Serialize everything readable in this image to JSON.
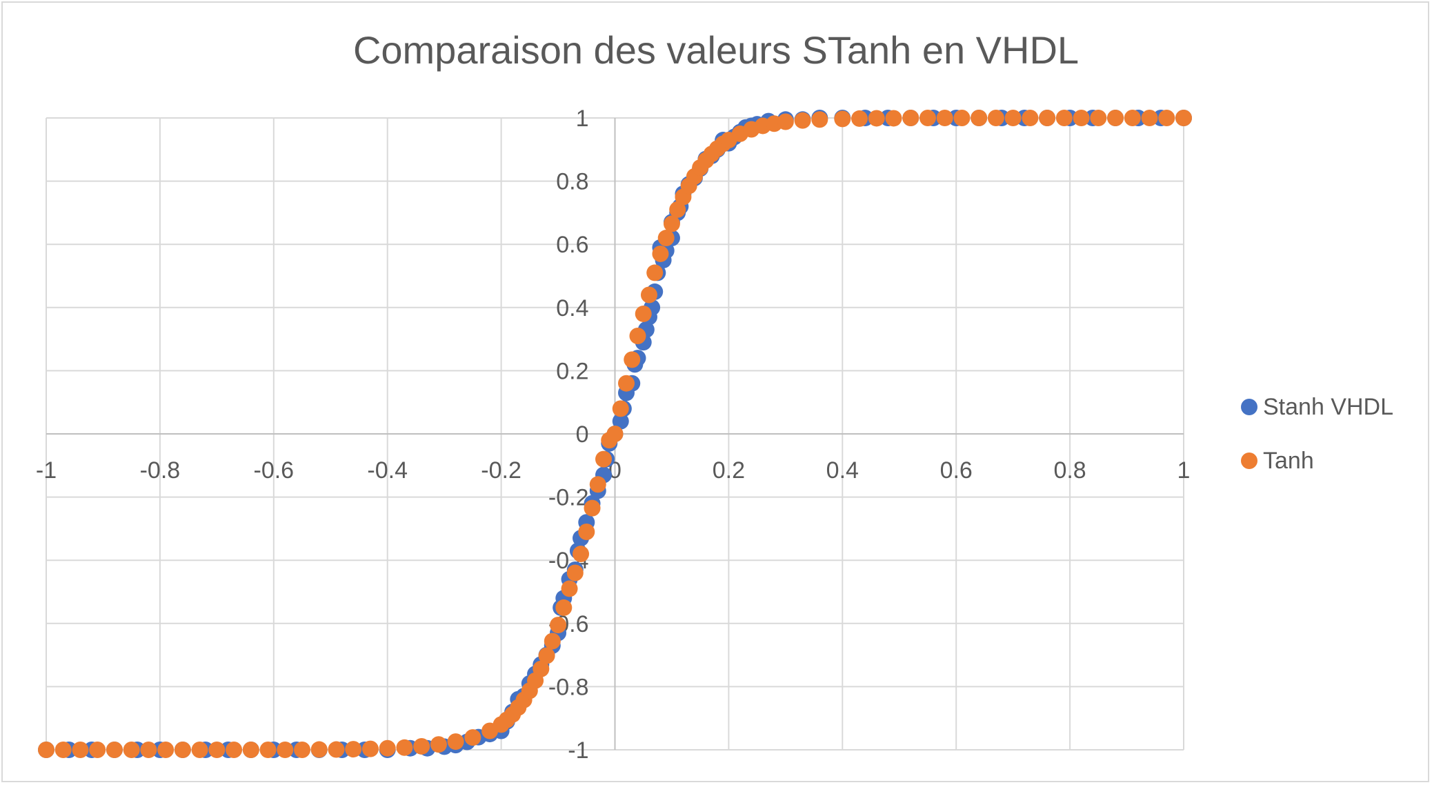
{
  "chart_data": {
    "type": "scatter",
    "title": "Comparaison des valeurs STanh en VHDL",
    "xlabel": "",
    "ylabel": "",
    "xlim": [
      -1,
      1
    ],
    "ylim": [
      -1,
      1
    ],
    "x_ticks": [
      "-1",
      "-0.8",
      "-0.6",
      "-0.4",
      "-0.2",
      "0",
      "0.2",
      "0.4",
      "0.6",
      "0.8",
      "1"
    ],
    "y_ticks": [
      "1",
      "0.8",
      "0.6",
      "0.4",
      "0.2",
      "0",
      "-0.2",
      "-0.4",
      "-0.6",
      "-0.8",
      "-1"
    ],
    "grid": true,
    "legend_position": "right",
    "series": [
      {
        "name": "Stanh VHDL",
        "color": "#4472c4",
        "points": [
          [
            -1.0,
            -1.0
          ],
          [
            -0.96,
            -1.0
          ],
          [
            -0.92,
            -1.0
          ],
          [
            -0.88,
            -1.0
          ],
          [
            -0.84,
            -1.0
          ],
          [
            -0.8,
            -1.0
          ],
          [
            -0.76,
            -1.0
          ],
          [
            -0.72,
            -1.0
          ],
          [
            -0.68,
            -1.0
          ],
          [
            -0.64,
            -1.0
          ],
          [
            -0.6,
            -1.0
          ],
          [
            -0.56,
            -1.0
          ],
          [
            -0.52,
            -1.0
          ],
          [
            -0.48,
            -1.0
          ],
          [
            -0.44,
            -1.0
          ],
          [
            -0.4,
            -1.0
          ],
          [
            -0.36,
            -0.995
          ],
          [
            -0.33,
            -0.995
          ],
          [
            -0.3,
            -0.99
          ],
          [
            -0.28,
            -0.985
          ],
          [
            -0.26,
            -0.975
          ],
          [
            -0.24,
            -0.96
          ],
          [
            -0.22,
            -0.95
          ],
          [
            -0.2,
            -0.94
          ],
          [
            -0.19,
            -0.91
          ],
          [
            -0.18,
            -0.88
          ],
          [
            -0.17,
            -0.84
          ],
          [
            -0.16,
            -0.83
          ],
          [
            -0.15,
            -0.79
          ],
          [
            -0.14,
            -0.76
          ],
          [
            -0.13,
            -0.73
          ],
          [
            -0.12,
            -0.7
          ],
          [
            -0.11,
            -0.67
          ],
          [
            -0.1,
            -0.63
          ],
          [
            -0.095,
            -0.55
          ],
          [
            -0.09,
            -0.52
          ],
          [
            -0.08,
            -0.46
          ],
          [
            -0.07,
            -0.43
          ],
          [
            -0.065,
            -0.37
          ],
          [
            -0.06,
            -0.33
          ],
          [
            -0.05,
            -0.28
          ],
          [
            -0.04,
            -0.22
          ],
          [
            -0.03,
            -0.18
          ],
          [
            -0.02,
            -0.13
          ],
          [
            -0.015,
            -0.08
          ],
          [
            -0.01,
            -0.03
          ],
          [
            0.0,
            0.0
          ],
          [
            0.01,
            0.04
          ],
          [
            0.015,
            0.08
          ],
          [
            0.02,
            0.13
          ],
          [
            0.03,
            0.16
          ],
          [
            0.035,
            0.22
          ],
          [
            0.04,
            0.24
          ],
          [
            0.05,
            0.29
          ],
          [
            0.055,
            0.33
          ],
          [
            0.06,
            0.37
          ],
          [
            0.065,
            0.4
          ],
          [
            0.07,
            0.45
          ],
          [
            0.075,
            0.51
          ],
          [
            0.08,
            0.59
          ],
          [
            0.085,
            0.55
          ],
          [
            0.09,
            0.58
          ],
          [
            0.1,
            0.62
          ],
          [
            0.1,
            0.67
          ],
          [
            0.11,
            0.7
          ],
          [
            0.115,
            0.72
          ],
          [
            0.12,
            0.76
          ],
          [
            0.13,
            0.79
          ],
          [
            0.14,
            0.81
          ],
          [
            0.15,
            0.84
          ],
          [
            0.16,
            0.87
          ],
          [
            0.17,
            0.88
          ],
          [
            0.18,
            0.9
          ],
          [
            0.19,
            0.93
          ],
          [
            0.2,
            0.92
          ],
          [
            0.21,
            0.94
          ],
          [
            0.22,
            0.955
          ],
          [
            0.23,
            0.97
          ],
          [
            0.24,
            0.975
          ],
          [
            0.25,
            0.98
          ],
          [
            0.27,
            0.99
          ],
          [
            0.3,
            0.995
          ],
          [
            0.33,
            0.995
          ],
          [
            0.36,
            1.0
          ],
          [
            0.4,
            1.0
          ],
          [
            0.44,
            1.0
          ],
          [
            0.48,
            1.0
          ],
          [
            0.52,
            1.0
          ],
          [
            0.56,
            1.0
          ],
          [
            0.6,
            1.0
          ],
          [
            0.64,
            1.0
          ],
          [
            0.68,
            1.0
          ],
          [
            0.72,
            1.0
          ],
          [
            0.76,
            1.0
          ],
          [
            0.8,
            1.0
          ],
          [
            0.84,
            1.0
          ],
          [
            0.88,
            1.0
          ],
          [
            0.92,
            1.0
          ],
          [
            0.96,
            1.0
          ],
          [
            1.0,
            1.0
          ]
        ]
      },
      {
        "name": "Tanh",
        "color": "#ed7d31",
        "points": [
          [
            -1.0,
            -1.0
          ],
          [
            -0.97,
            -1.0
          ],
          [
            -0.94,
            -1.0
          ],
          [
            -0.91,
            -1.0
          ],
          [
            -0.88,
            -1.0
          ],
          [
            -0.85,
            -1.0
          ],
          [
            -0.82,
            -1.0
          ],
          [
            -0.79,
            -1.0
          ],
          [
            -0.76,
            -1.0
          ],
          [
            -0.73,
            -1.0
          ],
          [
            -0.7,
            -1.0
          ],
          [
            -0.67,
            -1.0
          ],
          [
            -0.64,
            -1.0
          ],
          [
            -0.61,
            -1.0
          ],
          [
            -0.58,
            -1.0
          ],
          [
            -0.55,
            -1.0
          ],
          [
            -0.52,
            -0.999
          ],
          [
            -0.49,
            -0.999
          ],
          [
            -0.46,
            -0.998
          ],
          [
            -0.43,
            -0.997
          ],
          [
            -0.4,
            -0.995
          ],
          [
            -0.37,
            -0.993
          ],
          [
            -0.34,
            -0.989
          ],
          [
            -0.31,
            -0.983
          ],
          [
            -0.28,
            -0.974
          ],
          [
            -0.25,
            -0.961
          ],
          [
            -0.22,
            -0.94
          ],
          [
            -0.2,
            -0.92
          ],
          [
            -0.19,
            -0.905
          ],
          [
            -0.18,
            -0.888
          ],
          [
            -0.17,
            -0.866
          ],
          [
            -0.16,
            -0.842
          ],
          [
            -0.15,
            -0.813
          ],
          [
            -0.14,
            -0.781
          ],
          [
            -0.13,
            -0.744
          ],
          [
            -0.12,
            -0.702
          ],
          [
            -0.11,
            -0.656
          ],
          [
            -0.1,
            -0.605
          ],
          [
            -0.09,
            -0.55
          ],
          [
            -0.08,
            -0.49
          ],
          [
            -0.07,
            -0.44
          ],
          [
            -0.06,
            -0.38
          ],
          [
            -0.05,
            -0.31
          ],
          [
            -0.04,
            -0.235
          ],
          [
            -0.03,
            -0.16
          ],
          [
            -0.02,
            -0.08
          ],
          [
            -0.01,
            -0.02
          ],
          [
            0.0,
            0.0
          ],
          [
            0.01,
            0.08
          ],
          [
            0.02,
            0.16
          ],
          [
            0.03,
            0.235
          ],
          [
            0.04,
            0.31
          ],
          [
            0.05,
            0.38
          ],
          [
            0.06,
            0.44
          ],
          [
            0.07,
            0.51
          ],
          [
            0.08,
            0.57
          ],
          [
            0.09,
            0.62
          ],
          [
            0.1,
            0.665
          ],
          [
            0.11,
            0.71
          ],
          [
            0.12,
            0.75
          ],
          [
            0.13,
            0.785
          ],
          [
            0.14,
            0.815
          ],
          [
            0.15,
            0.843
          ],
          [
            0.16,
            0.866
          ],
          [
            0.17,
            0.886
          ],
          [
            0.18,
            0.903
          ],
          [
            0.19,
            0.918
          ],
          [
            0.2,
            0.93
          ],
          [
            0.22,
            0.95
          ],
          [
            0.24,
            0.964
          ],
          [
            0.26,
            0.975
          ],
          [
            0.28,
            0.982
          ],
          [
            0.3,
            0.988
          ],
          [
            0.33,
            0.992
          ],
          [
            0.36,
            0.995
          ],
          [
            0.4,
            0.997
          ],
          [
            0.43,
            0.998
          ],
          [
            0.46,
            0.999
          ],
          [
            0.49,
            0.999
          ],
          [
            0.52,
            1.0
          ],
          [
            0.55,
            1.0
          ],
          [
            0.58,
            1.0
          ],
          [
            0.61,
            1.0
          ],
          [
            0.64,
            1.0
          ],
          [
            0.67,
            1.0
          ],
          [
            0.7,
            1.0
          ],
          [
            0.73,
            1.0
          ],
          [
            0.76,
            1.0
          ],
          [
            0.79,
            1.0
          ],
          [
            0.82,
            1.0
          ],
          [
            0.85,
            1.0
          ],
          [
            0.88,
            1.0
          ],
          [
            0.91,
            1.0
          ],
          [
            0.94,
            1.0
          ],
          [
            0.97,
            1.0
          ],
          [
            1.0,
            1.0
          ]
        ]
      }
    ]
  }
}
